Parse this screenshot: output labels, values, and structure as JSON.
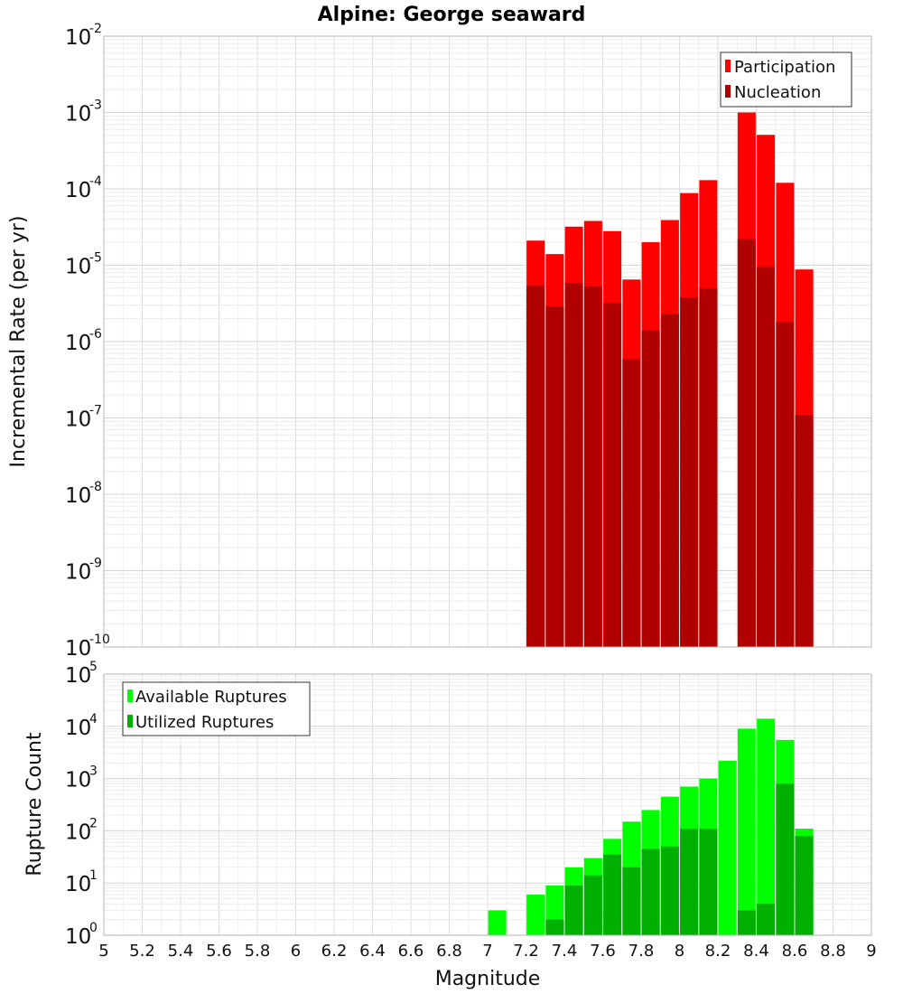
{
  "title": "Alpine: George seaward",
  "chart_data": [
    {
      "type": "bar",
      "ylabel": "Incremental Rate (per yr)",
      "yscale": "log",
      "ylim_exp": [
        -10,
        -2
      ],
      "xlim": [
        5,
        9
      ],
      "legend_position": "top-right",
      "series": [
        {
          "name": "Participation",
          "color": "#ff0000",
          "x": [
            7.25,
            7.35,
            7.45,
            7.55,
            7.65,
            7.75,
            7.85,
            7.95,
            8.05,
            8.15,
            8.35,
            8.45,
            8.55,
            8.65
          ],
          "values": [
            2.1e-05,
            1.4e-05,
            3.2e-05,
            3.8e-05,
            2.8e-05,
            6.5e-06,
            2e-05,
            3.9e-05,
            8.8e-05,
            0.00013,
            0.001,
            0.00051,
            0.00012,
            8.8e-06
          ]
        },
        {
          "name": "Nucleation",
          "color": "#b00000",
          "x": [
            7.25,
            7.35,
            7.45,
            7.55,
            7.65,
            7.75,
            7.85,
            7.95,
            8.05,
            8.15,
            8.35,
            8.45,
            8.55,
            8.65
          ],
          "values": [
            5.4e-06,
            2.9e-06,
            5.9e-06,
            5.3e-06,
            3.2e-06,
            5.9e-07,
            1.4e-06,
            2.3e-06,
            3.8e-06,
            5e-06,
            2.2e-05,
            9.5e-06,
            1.8e-06,
            1.1e-07
          ]
        }
      ]
    },
    {
      "type": "bar",
      "xlabel": "Magnitude",
      "ylabel": "Rupture Count",
      "yscale": "log",
      "ylim_exp": [
        0,
        5
      ],
      "xlim": [
        5,
        9
      ],
      "xticks": [
        "5",
        "5.2",
        "5.4",
        "5.6",
        "5.8",
        "6",
        "6.2",
        "6.4",
        "6.6",
        "6.8",
        "7",
        "7.2",
        "7.4",
        "7.6",
        "7.8",
        "8",
        "8.2",
        "8.4",
        "8.6",
        "8.8",
        "9"
      ],
      "legend_position": "top-left",
      "series": [
        {
          "name": "Available Ruptures",
          "color": "#00ff00",
          "x": [
            6.75,
            6.95,
            7.05,
            7.15,
            7.25,
            7.35,
            7.45,
            7.55,
            7.65,
            7.75,
            7.85,
            7.95,
            8.05,
            8.15,
            8.25,
            8.35,
            8.45,
            8.55,
            8.65
          ],
          "values": [
            1,
            1,
            3,
            1,
            6,
            9,
            20,
            30,
            70,
            150,
            250,
            450,
            700,
            1000,
            2200,
            9000,
            14000,
            5500,
            110
          ]
        },
        {
          "name": "Utilized Ruptures",
          "color": "#00b000",
          "x": [
            7.25,
            7.35,
            7.45,
            7.55,
            7.65,
            7.75,
            7.85,
            7.95,
            8.05,
            8.15,
            8.35,
            8.45,
            8.55,
            8.65
          ],
          "values": [
            1,
            2,
            9,
            14,
            35,
            20,
            45,
            50,
            110,
            110,
            3,
            4,
            800,
            80
          ]
        }
      ]
    }
  ]
}
